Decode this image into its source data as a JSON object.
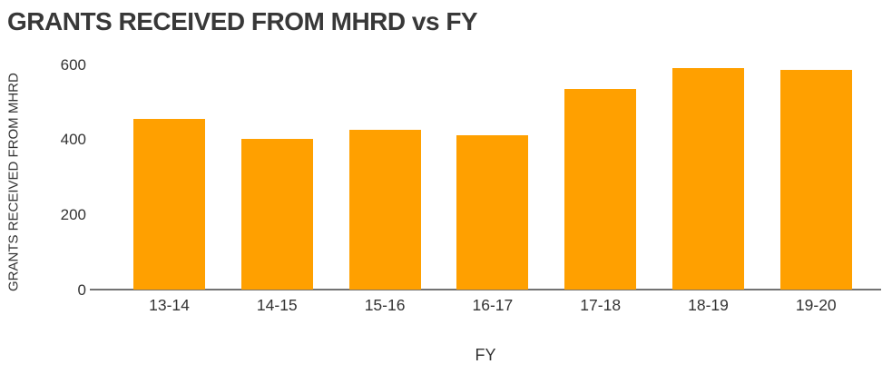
{
  "title": "GRANTS RECEIVED FROM MHRD vs FY",
  "colors": {
    "bar": "#FFA000",
    "axis_line": "#737373",
    "text": "#333333",
    "title_text": "#383838",
    "background": "#FFFFFF"
  },
  "chart_data": {
    "type": "bar",
    "title": "GRANTS RECEIVED FROM MHRD vs FY",
    "xlabel": "FY",
    "ylabel": "GRANTS RECEIVED FROM MHRD",
    "categories": [
      "13-14",
      "14-15",
      "15-16",
      "16-17",
      "17-18",
      "18-19",
      "19-20"
    ],
    "values": [
      455,
      400,
      425,
      410,
      535,
      590,
      585
    ],
    "yticks": [
      0,
      200,
      400,
      600
    ],
    "ylim": [
      0,
      628
    ],
    "bar_color": "#FFA000",
    "grid": false,
    "legend": false,
    "legend_position": "none"
  }
}
